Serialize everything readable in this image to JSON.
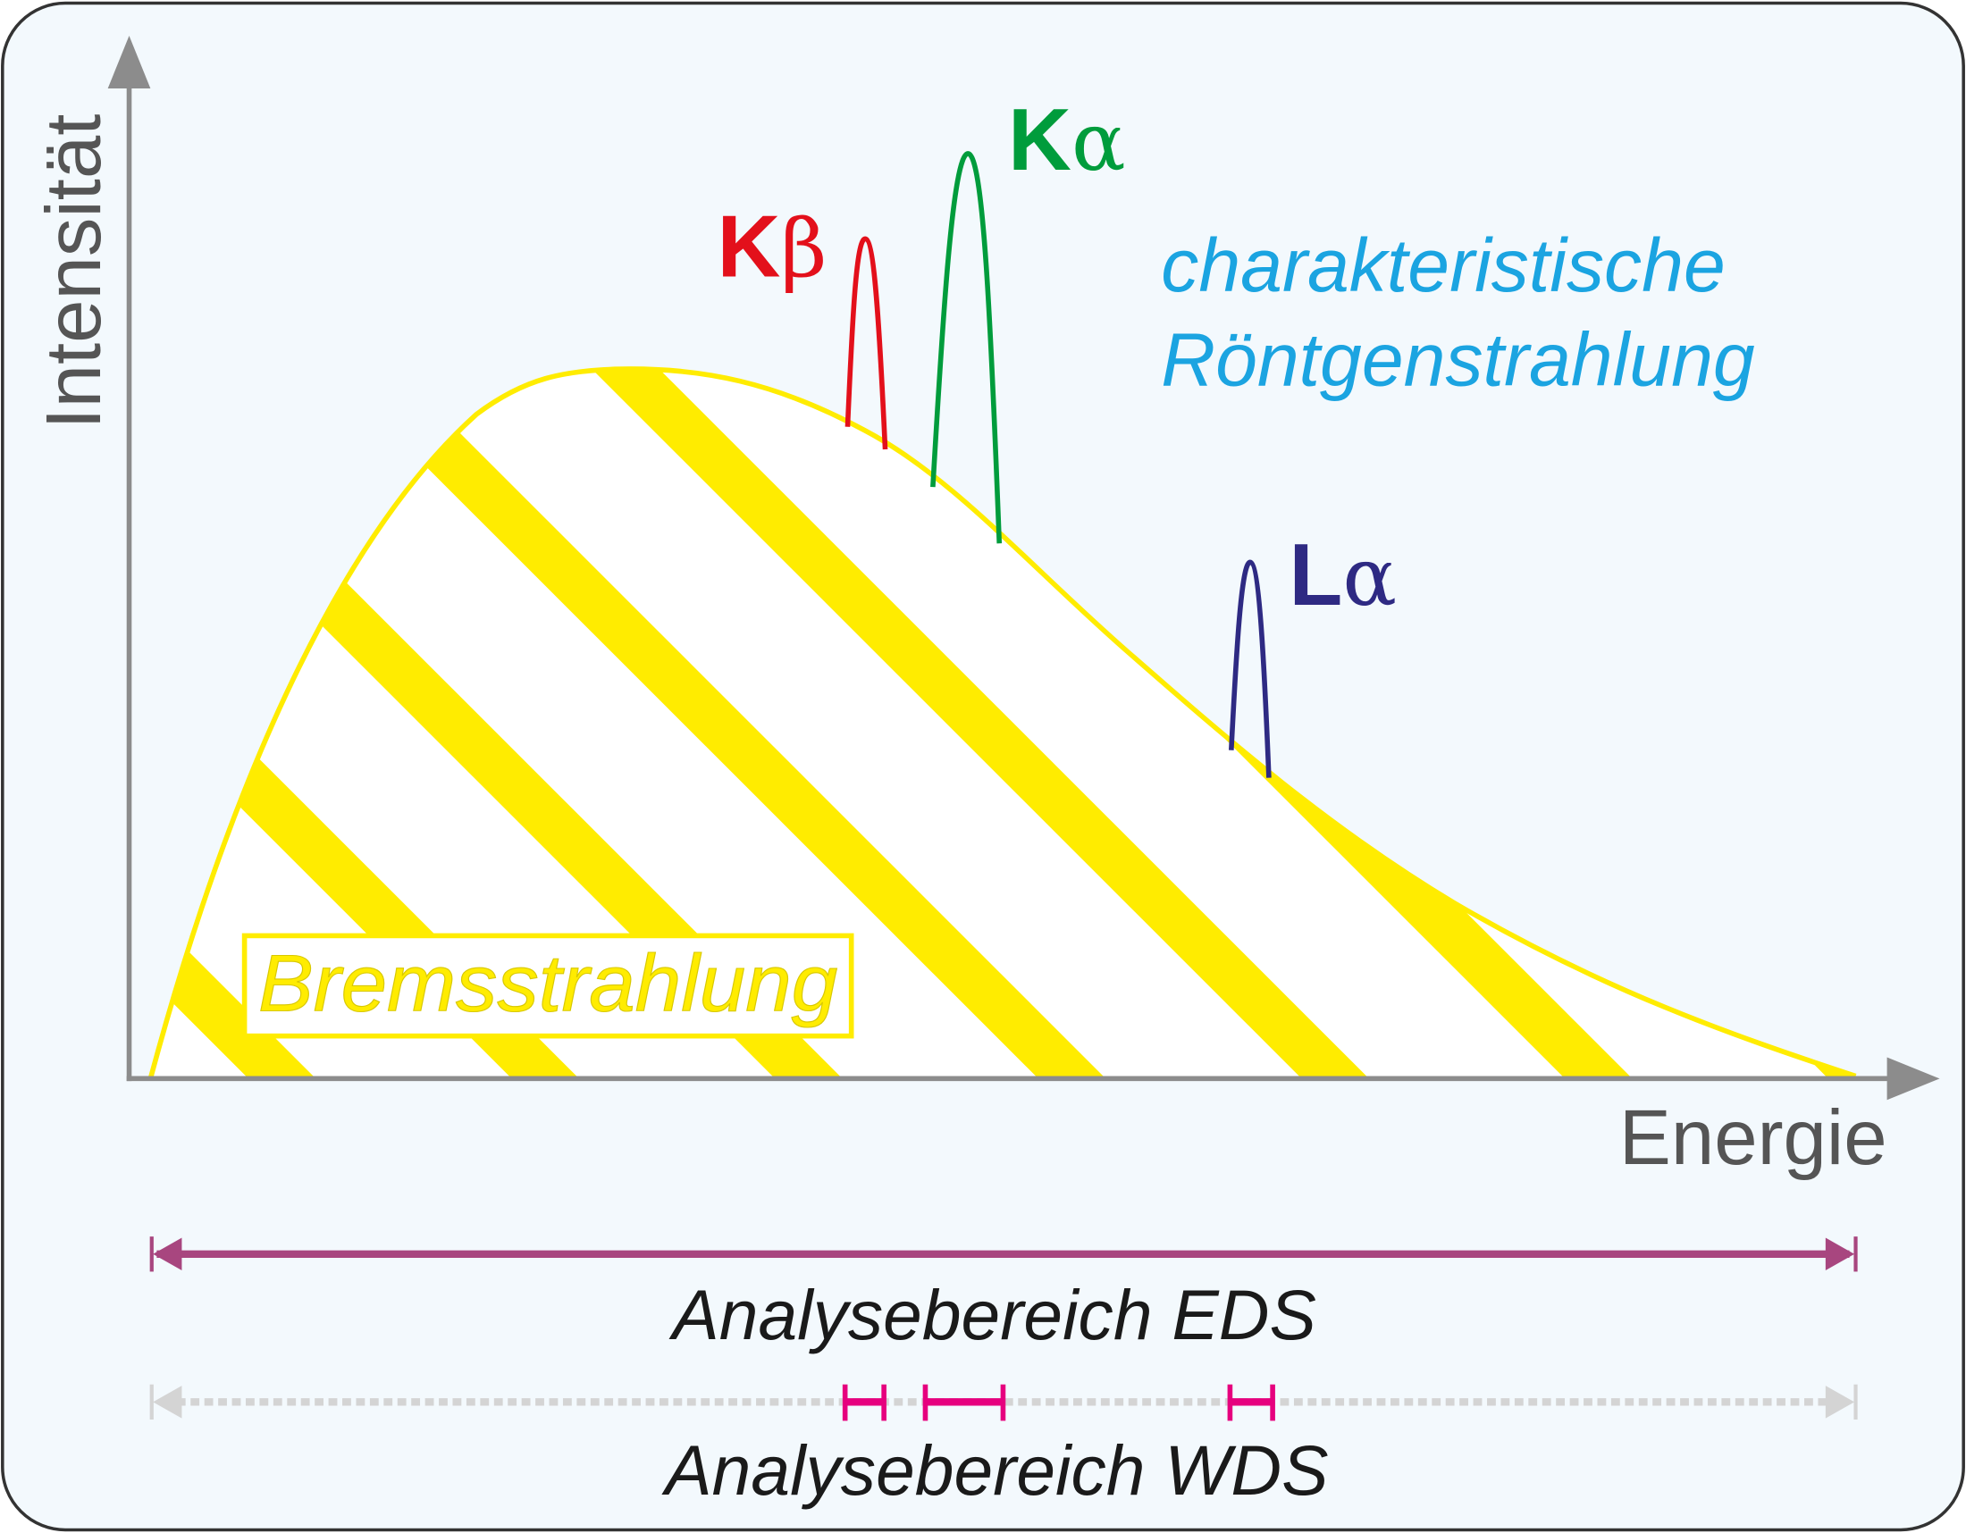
{
  "axes": {
    "y_label": "Intensität",
    "x_label": "Energie"
  },
  "continuum": {
    "label": "Bremsstrahlung",
    "color": "#ffec00"
  },
  "characteristic": {
    "line1": "charakteristische",
    "line2": "Röntgenstrahlung",
    "color": "#1ba4e1"
  },
  "peaks": [
    {
      "letter": "K",
      "greek": "β",
      "color": "#e3101b"
    },
    {
      "letter": "K",
      "greek": "α",
      "color": "#009c3c"
    },
    {
      "letter": "L",
      "greek": "α",
      "color": "#2e2a83"
    }
  ],
  "ranges": {
    "eds_label": "Analysebereich EDS",
    "eds_color": "#a8467f",
    "wds_label": "Analysebereich WDS",
    "wds_color": "#e6007e",
    "wds_base_color": "#d4d4d4"
  },
  "colors": {
    "background": "#f3f9fd",
    "axis": "#8c8c8c",
    "axis_text": "#555555",
    "border": "#333333"
  }
}
